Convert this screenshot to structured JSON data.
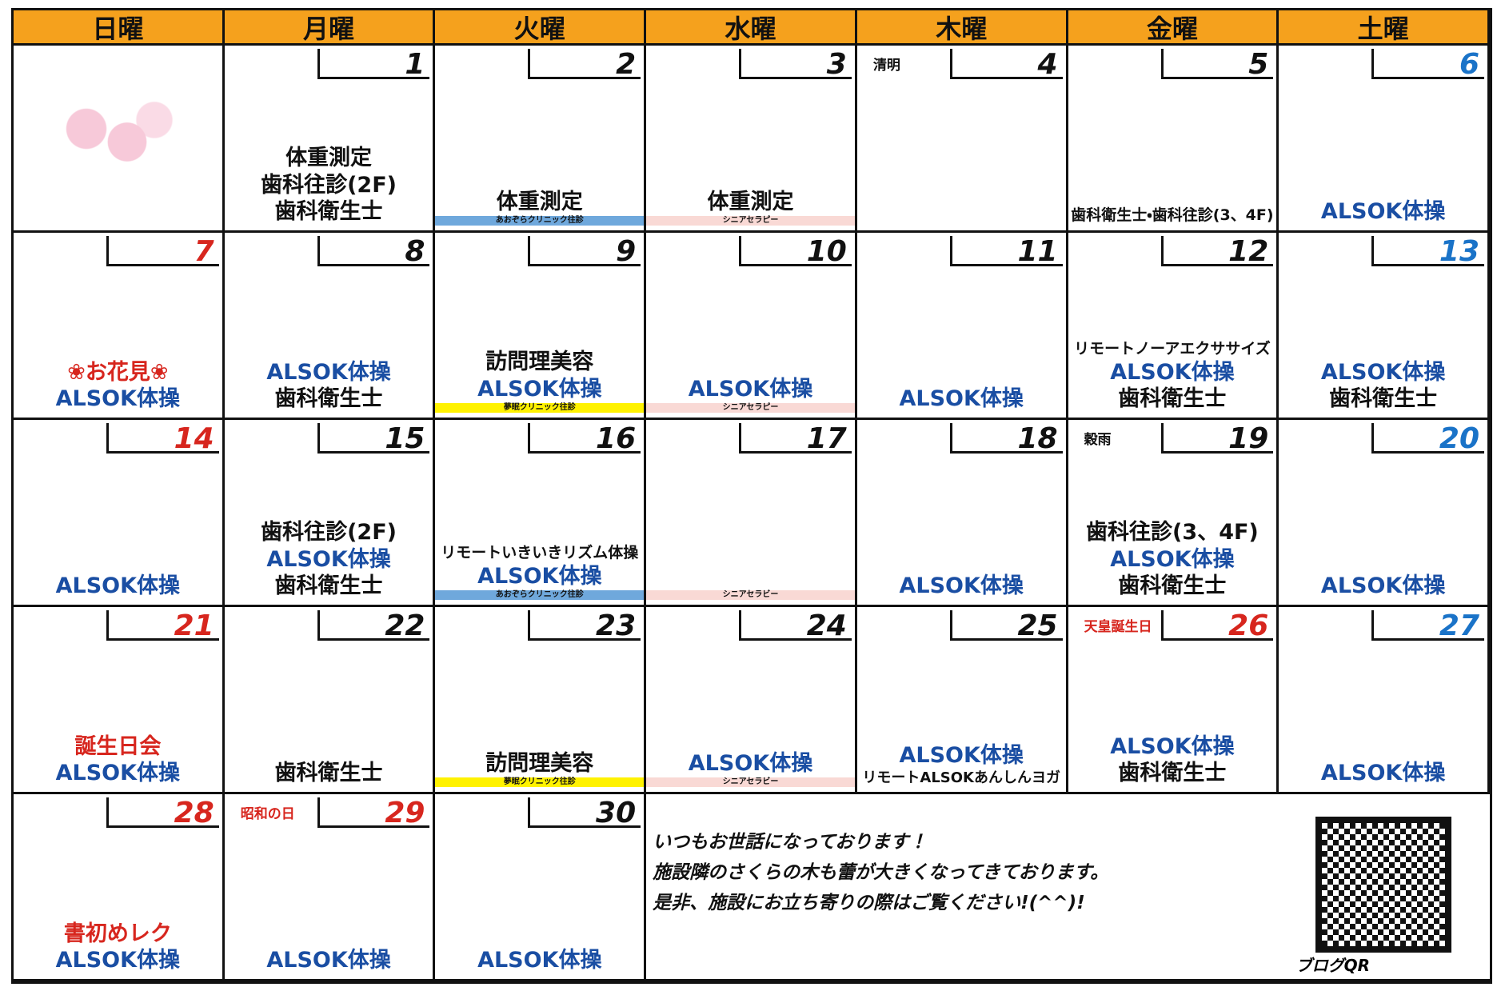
{
  "headers": [
    "日曜",
    "月曜",
    "火曜",
    "水曜",
    "木曜",
    "金曜",
    "土曜"
  ],
  "weeks": [
    [
      null,
      {
        "day": 1,
        "events": [
          {
            "text": "体重測定",
            "color": "#111111"
          },
          {
            "text": "歯科往診(2F)",
            "color": "#111111"
          },
          {
            "text": "歯科衛生士",
            "color": "#111111"
          }
        ]
      },
      {
        "day": 2,
        "events": [
          {
            "text": "体重測定",
            "color": "#111111"
          },
          {
            "text": "あおぞらクリニック往診",
            "color": "#111111",
            "bg": "#6fa8dc"
          }
        ]
      },
      {
        "day": 3,
        "events": [
          {
            "text": "体重測定",
            "color": "#111111"
          },
          {
            "text": "シニアセラピー",
            "color": "#111111",
            "bg": "#f9d9d5"
          }
        ]
      },
      {
        "day": 4,
        "holiday": "清明",
        "holiday_color": "#111111",
        "events": []
      },
      {
        "day": 5,
        "events": [
          {
            "text": "歯科衛生士・歯科往診(3、4F)",
            "color": "#111111"
          }
        ]
      },
      {
        "day": 6,
        "number_color": "#1a73c8",
        "events": [
          {
            "text": "ALSOK体操",
            "color": "#1a4ea3"
          }
        ]
      }
    ],
    [
      {
        "day": 7,
        "number_color": "#d7261e",
        "events": [
          {
            "text": "❀お花見❀",
            "color": "#d7261e"
          },
          {
            "text": "ALSOK体操",
            "color": "#1a4ea3"
          }
        ]
      },
      {
        "day": 8,
        "events": [
          {
            "text": "ALSOK体操",
            "color": "#1a4ea3"
          },
          {
            "text": "歯科衛生士",
            "color": "#111111"
          }
        ]
      },
      {
        "day": 9,
        "events": [
          {
            "text": "訪問理美容",
            "color": "#111111"
          },
          {
            "text": "ALSOK体操",
            "color": "#1a4ea3"
          },
          {
            "text": "夢眠クリニック往診",
            "color": "#111111",
            "bg": "#fff200"
          }
        ]
      },
      {
        "day": 10,
        "events": [
          {
            "text": "ALSOK体操",
            "color": "#1a4ea3"
          },
          {
            "text": "シニアセラピー",
            "color": "#111111",
            "bg": "#f9d9d5"
          }
        ]
      },
      {
        "day": 11,
        "events": [
          {
            "text": "ALSOK体操",
            "color": "#1a4ea3"
          }
        ]
      },
      {
        "day": 12,
        "events": [
          {
            "text": "リモートノーアエクササイズ",
            "color": "#111111"
          },
          {
            "text": "ALSOK体操",
            "color": "#1a4ea3"
          },
          {
            "text": "歯科衛生士",
            "color": "#111111"
          }
        ]
      },
      {
        "day": 13,
        "number_color": "#1a73c8",
        "events": [
          {
            "text": "ALSOK体操",
            "color": "#1a4ea3"
          },
          {
            "text": "歯科衛生士",
            "color": "#111111"
          }
        ]
      }
    ],
    [
      {
        "day": 14,
        "number_color": "#d7261e",
        "events": [
          {
            "text": "ALSOK体操",
            "color": "#1a4ea3"
          }
        ]
      },
      {
        "day": 15,
        "events": [
          {
            "text": "歯科往診(2F)",
            "color": "#111111"
          },
          {
            "text": "ALSOK体操",
            "color": "#1a4ea3"
          },
          {
            "text": "歯科衛生士",
            "color": "#111111"
          }
        ]
      },
      {
        "day": 16,
        "events": [
          {
            "text": "リモートいきいきリズム体操",
            "color": "#111111"
          },
          {
            "text": "ALSOK体操",
            "color": "#1a4ea3"
          },
          {
            "text": "あおぞらクリニック往診",
            "color": "#111111",
            "bg": "#6fa8dc"
          }
        ]
      },
      {
        "day": 17,
        "events": [
          {
            "text": "シニアセラビー",
            "color": "#111111",
            "bg": "#f9d9d5"
          }
        ]
      },
      {
        "day": 18,
        "events": [
          {
            "text": "ALSOK体操",
            "color": "#1a4ea3"
          }
        ]
      },
      {
        "day": 19,
        "holiday": "穀雨",
        "holiday_color": "#111111",
        "events": [
          {
            "text": "歯科往診(3、4F)",
            "color": "#111111"
          },
          {
            "text": "ALSOK体操",
            "color": "#1a4ea3"
          },
          {
            "text": "歯科衛生士",
            "color": "#111111"
          }
        ]
      },
      {
        "day": 20,
        "number_color": "#1a73c8",
        "events": [
          {
            "text": "ALSOK体操",
            "color": "#1a4ea3"
          }
        ]
      }
    ],
    [
      {
        "day": 21,
        "number_color": "#d7261e",
        "events": [
          {
            "text": "誕生日会",
            "color": "#d7261e"
          },
          {
            "text": "ALSOK体操",
            "color": "#1a4ea3"
          }
        ]
      },
      {
        "day": 22,
        "events": [
          {
            "text": "歯科衛生士",
            "color": "#111111"
          }
        ]
      },
      {
        "day": 23,
        "events": [
          {
            "text": "訪問理美容",
            "color": "#111111"
          },
          {
            "text": "夢眠クリニック往診",
            "color": "#111111",
            "bg": "#fff200"
          }
        ]
      },
      {
        "day": 24,
        "events": [
          {
            "text": "ALSOK体操",
            "color": "#1a4ea3"
          },
          {
            "text": "シニアセラビー",
            "color": "#111111",
            "bg": "#f9d9d5"
          }
        ]
      },
      {
        "day": 25,
        "events": [
          {
            "text": "ALSOK体操",
            "color": "#1a4ea3"
          },
          {
            "text": "リモートALSOKあんしんヨガ",
            "color": "#111111"
          }
        ]
      },
      {
        "day": 26,
        "number_color": "#d7261e",
        "holiday": "天皇誕生日",
        "holiday_color": "#d7261e",
        "events": [
          {
            "text": "ALSOK体操",
            "color": "#1a4ea3"
          },
          {
            "text": "歯科衛生士",
            "color": "#111111"
          }
        ]
      },
      {
        "day": 27,
        "number_color": "#1a73c8",
        "events": [
          {
            "text": "ALSOK体操",
            "color": "#1a4ea3"
          }
        ]
      }
    ],
    [
      {
        "day": 28,
        "number_color": "#d7261e",
        "events": [
          {
            "text": "書初めレク",
            "color": "#d7261e"
          },
          {
            "text": "ALSOK体操",
            "color": "#1a4ea3"
          }
        ]
      },
      {
        "day": 29,
        "number_color": "#d7261e",
        "holiday": "昭和の日",
        "holiday_color": "#d7261e",
        "events": [
          {
            "text": "ALSOK体操",
            "color": "#1a4ea3"
          }
        ]
      },
      {
        "day": 30,
        "events": [
          {
            "text": "ALSOK体操",
            "color": "#1a4ea3"
          }
        ]
      }
    ]
  ],
  "message": {
    "lines": [
      "いつもお世話になっております！",
      "施設隣のさくらの木も蕾が大きくなってきております。",
      "是非、施設にお立ち寄りの際はご覧ください!(^^)!"
    ],
    "qr_label": "ブログQR"
  }
}
